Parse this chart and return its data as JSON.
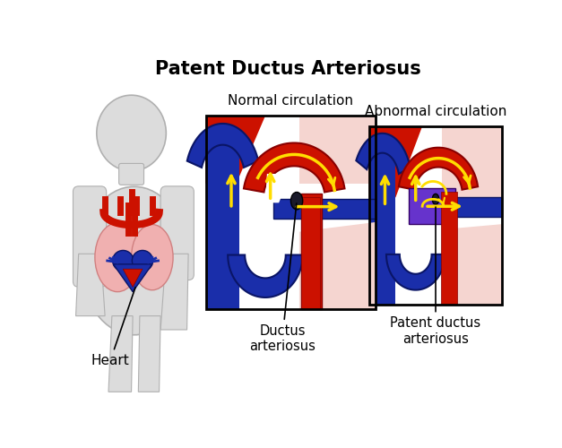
{
  "title": "Patent Ductus Arteriosus",
  "title_fontsize": 15,
  "title_fontweight": "bold",
  "bg_color": "#ffffff",
  "label_normal": "Normal circulation",
  "label_abnormal": "Abnormal circulation",
  "label_ductus": "Ductus\narteriosus",
  "label_patent": "Patent ductus\narteriosus",
  "label_heart": "Heart",
  "color_red": "#cc1100",
  "color_darkred": "#880000",
  "color_blue": "#1a2eaa",
  "color_darkblue": "#0a1566",
  "color_yellow": "#ffdd00",
  "color_pink": "#f2b8b8",
  "color_light_pink": "#f5d5d0",
  "color_white": "#ffffff",
  "color_baby": "#dcdcdc",
  "color_baby_edge": "#b0b0b0",
  "color_lung": "#f0b0b0",
  "color_purple": "#6633cc",
  "color_black": "#111111"
}
